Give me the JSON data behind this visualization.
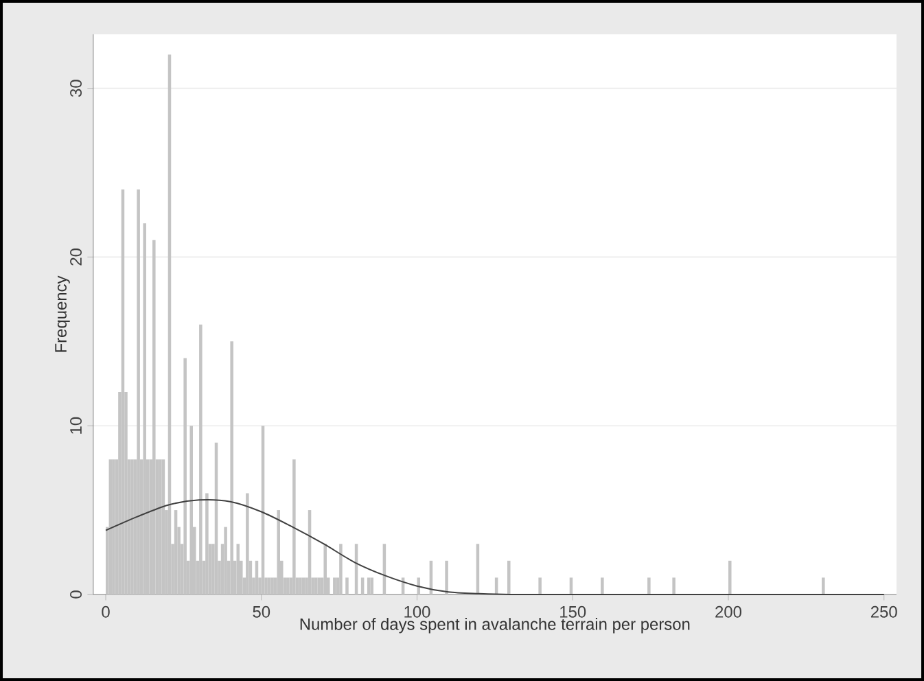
{
  "chart_data": {
    "type": "histogram",
    "xlabel": "Number of days spent in avalanche terrain per person",
    "ylabel": "Frequency",
    "bins": [
      0,
      1,
      2,
      3,
      4,
      5,
      6,
      7,
      8,
      9,
      10,
      11,
      12,
      13,
      14,
      15,
      16,
      17,
      18,
      19,
      20,
      21,
      22,
      23,
      24,
      25,
      26,
      27,
      28,
      29,
      30,
      31,
      32,
      33,
      34,
      35,
      36,
      37,
      38,
      39,
      40,
      41,
      42,
      43,
      44,
      45,
      46,
      47,
      48,
      49,
      50,
      51,
      52,
      53,
      54,
      55,
      56,
      57,
      58,
      59,
      60,
      61,
      62,
      63,
      64,
      65,
      66,
      67,
      68,
      69,
      70,
      71,
      72,
      73,
      74,
      75,
      76,
      77,
      78,
      79,
      80,
      81,
      82,
      83,
      84,
      85,
      86,
      87,
      88,
      89,
      90,
      91,
      92,
      93,
      94,
      95,
      96,
      97,
      98,
      99,
      100,
      101,
      102,
      103,
      104,
      105,
      106,
      107,
      108,
      109,
      110,
      111,
      112,
      113,
      114,
      115,
      116,
      117,
      118,
      119,
      120,
      121,
      122,
      123,
      124,
      125,
      126,
      127,
      128,
      129,
      130,
      131,
      132,
      133,
      134,
      135,
      136,
      137,
      138,
      139,
      140,
      141,
      142,
      143,
      144,
      145,
      146,
      147,
      148,
      149,
      150,
      151,
      152,
      153,
      154,
      155,
      156,
      157,
      158,
      159,
      160,
      161,
      162,
      163,
      164,
      165,
      166,
      167,
      168,
      169,
      170,
      171,
      172,
      173,
      174,
      175,
      176,
      177,
      178,
      179,
      180,
      181,
      182,
      183,
      184,
      185,
      186,
      187,
      188,
      189,
      190,
      191,
      192,
      193,
      194,
      195,
      196,
      197,
      198,
      199,
      200,
      201,
      202,
      203,
      204,
      205,
      206,
      207,
      208,
      209,
      210,
      211,
      212,
      213,
      214,
      215,
      216,
      217,
      218,
      219,
      220,
      221,
      222,
      223,
      224,
      225,
      226,
      227,
      228,
      229,
      230,
      231
    ],
    "values": [
      4,
      8,
      8,
      8,
      12,
      24,
      12,
      8,
      8,
      8,
      24,
      8,
      22,
      8,
      8,
      21,
      8,
      8,
      8,
      5,
      32,
      3,
      5,
      4,
      3,
      14,
      2,
      10,
      4,
      2,
      16,
      2,
      6,
      3,
      3,
      9,
      2,
      3,
      4,
      2,
      15,
      2,
      3,
      2,
      1,
      6,
      2,
      1,
      2,
      1,
      10,
      1,
      1,
      1,
      1,
      5,
      2,
      1,
      1,
      1,
      8,
      1,
      1,
      1,
      1,
      5,
      1,
      1,
      1,
      1,
      3,
      1,
      0,
      1,
      1,
      3,
      0,
      1,
      0,
      0,
      3,
      0,
      1,
      0,
      1,
      1,
      0,
      0,
      0,
      3,
      0,
      0,
      0,
      0,
      0,
      1,
      0,
      0,
      0,
      0,
      1,
      0,
      0,
      0,
      2,
      0,
      0,
      0,
      0,
      2,
      0,
      0,
      0,
      0,
      0,
      0,
      0,
      0,
      0,
      3,
      0,
      0,
      0,
      0,
      0,
      1,
      0,
      0,
      0,
      2,
      0,
      0,
      0,
      0,
      0,
      0,
      0,
      0,
      0,
      1,
      0,
      0,
      0,
      0,
      0,
      0,
      0,
      0,
      0,
      1,
      0,
      0,
      0,
      0,
      0,
      0,
      0,
      0,
      0,
      1,
      0,
      0,
      0,
      0,
      0,
      0,
      0,
      0,
      0,
      0,
      0,
      0,
      0,
      0,
      1,
      0,
      0,
      0,
      0,
      0,
      0,
      0,
      1,
      0,
      0,
      0,
      0,
      0,
      0,
      0,
      0,
      0,
      0,
      0,
      0,
      0,
      0,
      0,
      0,
      0,
      2,
      0,
      0,
      0,
      0,
      0,
      0,
      0,
      0,
      0,
      0,
      0,
      0,
      0,
      0,
      0,
      0,
      0,
      0,
      0,
      0,
      0,
      0,
      0,
      0,
      0,
      0,
      0,
      0,
      0,
      1
    ],
    "color": "#c4c4c4",
    "series": [
      {
        "type": "line",
        "color": "#404040",
        "x": [
          0,
          10,
          20,
          30,
          40,
          50,
          60,
          70,
          80,
          90,
          100,
          110,
          120,
          130,
          150,
          200,
          250
        ],
        "values": [
          3.8,
          4.6,
          5.3,
          5.6,
          5.5,
          4.9,
          4.0,
          3.0,
          1.9,
          1.1,
          0.5,
          0.15,
          0.05,
          0,
          0,
          0,
          0
        ]
      }
    ],
    "xlim": [
      -4,
      254
    ],
    "ylim": [
      0,
      33.2
    ],
    "xticks": [
      0,
      50,
      100,
      150,
      200,
      250
    ],
    "yticks": [
      0,
      10,
      20,
      30
    ],
    "grid": "y"
  }
}
